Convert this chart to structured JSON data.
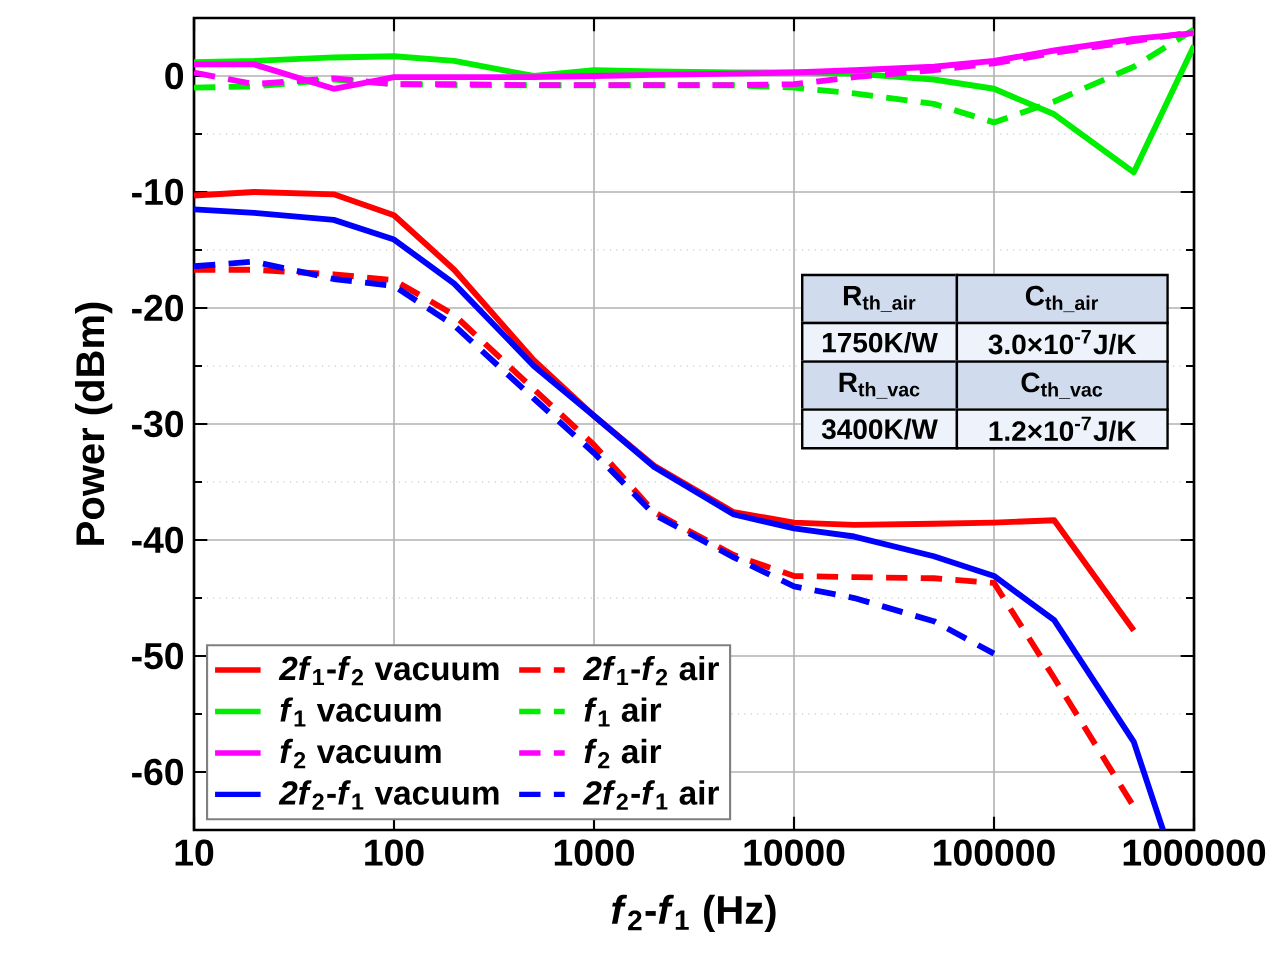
{
  "chart_data": {
    "type": "line",
    "xlabel": "*f*$_{2}$-*f*$_{1}$ (Hz)",
    "ylabel": "Power (dBm)",
    "log": "x",
    "xlim": [
      10,
      1000000
    ],
    "ylim": [
      -65,
      5
    ],
    "xticks": [
      10,
      100,
      1000,
      10000,
      100000,
      1000000
    ],
    "yticks": [
      -60,
      -50,
      -40,
      -30,
      -20,
      -10,
      0
    ],
    "grid": true,
    "legend": "bottom left",
    "marker": "none",
    "x": [
      10,
      20,
      50,
      100,
      200,
      500,
      1000,
      2000,
      5000,
      10000,
      20000,
      50000,
      100000,
      200000,
      500000,
      1000000
    ],
    "series": [
      {
        "name": "*2f*$_{1}$-*f*$_{2}$ vacuum",
        "color": "#ff0000",
        "line_style": "solid",
        "values": [
          -10.3,
          -10,
          -10.2,
          -12.0,
          -16.7,
          -24.5,
          -29.3,
          -33.6,
          -37.6,
          -38.5,
          -38.7,
          -38.6,
          -38.5,
          -38.3,
          -47.8,
          null
        ]
      },
      {
        "name": "*2f*$_{1}$-*f*$_{2}$ air",
        "color": "#ff0000",
        "line_style": "dashed",
        "values": [
          -16.7,
          -16.7,
          -17.1,
          -17.6,
          -20.6,
          -27.0,
          -31.8,
          -37.6,
          -41.3,
          -43.1,
          -43.2,
          -43.3,
          -43.7,
          -51.9,
          -63,
          null
        ]
      },
      {
        "name": "*f*$_{1}$ vacuum",
        "color": "#00ee00",
        "line_style": "solid",
        "values": [
          1.2,
          1.3,
          1.6,
          1.7,
          1.3,
          0,
          0.5,
          0.4,
          0.3,
          0.3,
          0.2,
          -0.3,
          -1.1,
          -3.3,
          -8.3,
          2.6
        ]
      },
      {
        "name": "*f*$_{1}$ air",
        "color": "#00ee00",
        "line_style": "dashed",
        "values": [
          -1.0,
          -0.9,
          -0.3,
          -0.7,
          -0.8,
          -0.8,
          -0.8,
          -0.8,
          -0.8,
          -1.0,
          -1.5,
          -2.4,
          -4.0,
          -2.2,
          0.8,
          4.0
        ]
      },
      {
        "name": "*f*$_{2}$ vacuum",
        "color": "#ff00ff",
        "line_style": "solid",
        "values": [
          1.0,
          1.0,
          -1.1,
          -0.1,
          -0.1,
          -0.1,
          0,
          0.1,
          0.2,
          0.3,
          0.5,
          0.8,
          1.3,
          2.2,
          3.2,
          3.7
        ]
      },
      {
        "name": "*f*$_{2}$ air",
        "color": "#ff00ff",
        "line_style": "dashed",
        "values": [
          0.3,
          -0.7,
          -0.2,
          -0.7,
          -0.7,
          -0.8,
          -0.8,
          -0.8,
          -0.8,
          -0.7,
          -0.1,
          0.5,
          1.1,
          2.0,
          3.0,
          3.8
        ]
      },
      {
        "name": "*2f*$_{2}$-*f*$_{1}$ vacuum",
        "color": "#0000ff",
        "line_style": "solid",
        "x": [
          10,
          20,
          50,
          100,
          200,
          500,
          1000,
          2000,
          5000,
          10000,
          20000,
          50000,
          100000,
          200000,
          500000,
          700000
        ],
        "values": [
          -11.5,
          -11.8,
          -12.4,
          -14.1,
          -17.9,
          -25.0,
          -29.3,
          -33.7,
          -37.8,
          -39.0,
          -39.7,
          -41.4,
          -43.1,
          -46.9,
          -57.4,
          -65
        ]
      },
      {
        "name": "*2f*$_{2}$-*f*$_{1}$ air",
        "color": "#0000ff",
        "line_style": "dashed",
        "values": [
          -16.4,
          -16.0,
          -17.5,
          -18.1,
          -21.5,
          -27.8,
          -32.5,
          -37.8,
          -41.5,
          -44.0,
          -45.0,
          -47.0,
          -49.8,
          null,
          null,
          null
        ]
      }
    ],
    "annotations": [
      "R$_{th_air}$",
      "C$_{th_air}$",
      "1750K/W",
      "3.0×10$^{-7}$J/K",
      "R$_{th_vac}$",
      "C$_{th_vac}$",
      "3400K/W",
      "1.2×10$^{-7}$J/K"
    ]
  }
}
